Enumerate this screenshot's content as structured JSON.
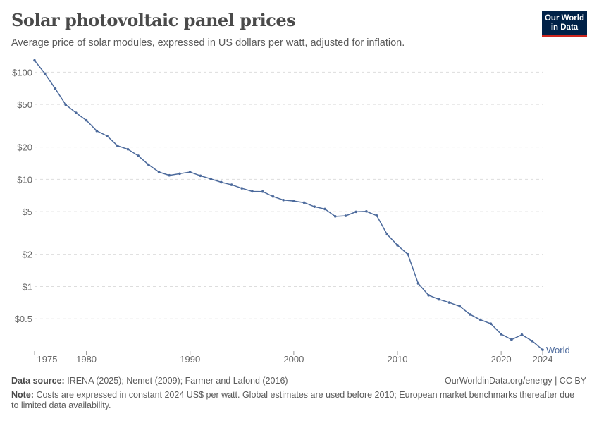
{
  "header": {
    "title": "Solar photovoltaic panel prices",
    "subtitle": "Average price of solar modules, expressed in US dollars per watt, adjusted for inflation.",
    "logo_line1": "Our World",
    "logo_line2": "in Data"
  },
  "chart_data": {
    "type": "line",
    "title": "Solar photovoltaic panel prices",
    "yscale": "log",
    "ylim": [
      0.25,
      130
    ],
    "xlim": [
      1975,
      2024
    ],
    "grid": "horizontal dashed",
    "yticks": [
      {
        "v": 100,
        "label": "$100"
      },
      {
        "v": 50,
        "label": "$50"
      },
      {
        "v": 20,
        "label": "$20"
      },
      {
        "v": 10,
        "label": "$10"
      },
      {
        "v": 5,
        "label": "$5"
      },
      {
        "v": 2,
        "label": "$2"
      },
      {
        "v": 1,
        "label": "$1"
      },
      {
        "v": 0.5,
        "label": "$0.5"
      }
    ],
    "xticks": [
      1975,
      1980,
      1990,
      2000,
      2010,
      2020,
      2024
    ],
    "series": [
      {
        "name": "World",
        "color": "#4c6a9c",
        "x": [
          1975,
          1976,
          1977,
          1978,
          1979,
          1980,
          1981,
          1982,
          1983,
          1984,
          1985,
          1986,
          1987,
          1988,
          1989,
          1990,
          1991,
          1992,
          1993,
          1994,
          1995,
          1996,
          1997,
          1998,
          1999,
          2000,
          2001,
          2002,
          2003,
          2004,
          2005,
          2006,
          2007,
          2008,
          2009,
          2010,
          2011,
          2012,
          2013,
          2014,
          2015,
          2016,
          2017,
          2018,
          2019,
          2020,
          2021,
          2022,
          2023,
          2024
        ],
        "values": [
          128.6,
          97,
          70.1,
          49.8,
          41.7,
          35.5,
          28.3,
          25.4,
          20.6,
          19.1,
          16.6,
          13.7,
          11.7,
          10.9,
          11.3,
          11.7,
          10.8,
          10.1,
          9.4,
          8.9,
          8.25,
          7.72,
          7.69,
          6.92,
          6.41,
          6.28,
          6.07,
          5.56,
          5.29,
          4.52,
          4.57,
          4.98,
          5.03,
          4.59,
          3.07,
          2.43,
          2.0,
          1.07,
          0.83,
          0.76,
          0.71,
          0.655,
          0.55,
          0.49,
          0.45,
          0.36,
          0.32,
          0.355,
          0.31,
          0.257
        ]
      }
    ]
  },
  "footer": {
    "source_label": "Data source:",
    "source": "IRENA (2025); Nemet (2009); Farmer and Lafond (2016)",
    "url": "OurWorldinData.org/energy | CC BY",
    "note_label": "Note:",
    "note": "Costs are expressed in constant 2024 US$ per watt. Global estimates are used before 2010; European market benchmarks thereafter due to limited data availability."
  }
}
